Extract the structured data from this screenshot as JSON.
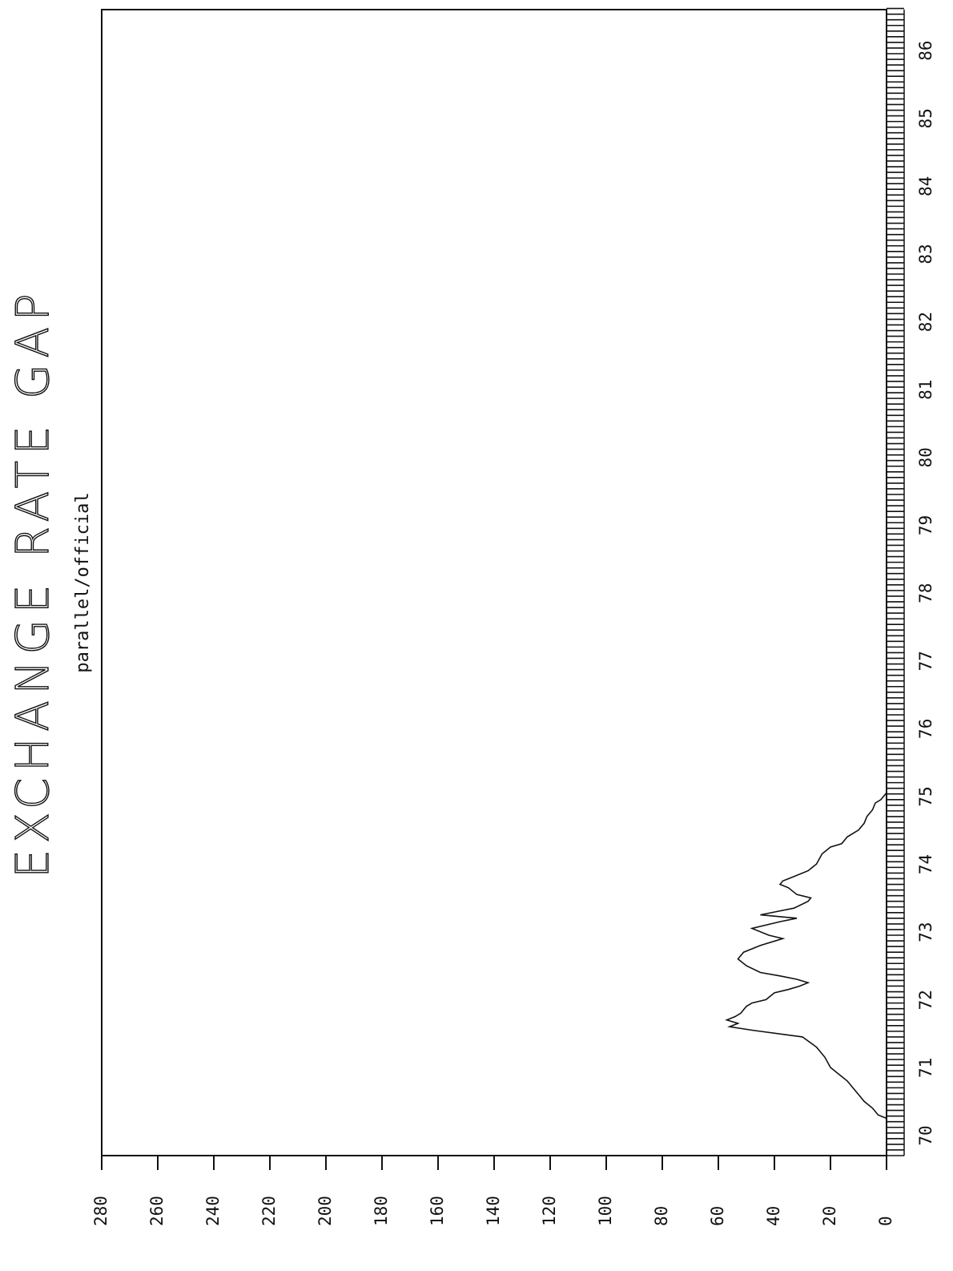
{
  "chart_data": {
    "type": "line",
    "title": "EXCHANGE RATE GAP",
    "subtitle": "parallel/official",
    "xlabel": "",
    "ylabel": "",
    "xlim": [
      70,
      86.9
    ],
    "ylim": [
      0,
      280
    ],
    "x_ticks": [
      {
        "value": 70,
        "label": "70"
      },
      {
        "value": 71,
        "label": "71"
      },
      {
        "value": 72,
        "label": "72"
      },
      {
        "value": 73,
        "label": "73"
      },
      {
        "value": 74,
        "label": "74"
      },
      {
        "value": 75,
        "label": "75"
      },
      {
        "value": 76,
        "label": "76"
      },
      {
        "value": 77,
        "label": "77"
      },
      {
        "value": 78,
        "label": "78"
      },
      {
        "value": 79,
        "label": "79"
      },
      {
        "value": 80,
        "label": "80"
      },
      {
        "value": 81,
        "label": "81"
      },
      {
        "value": 82,
        "label": "82"
      },
      {
        "value": 83,
        "label": "83"
      },
      {
        "value": 84,
        "label": "84"
      },
      {
        "value": 85,
        "label": "85"
      },
      {
        "value": 86,
        "label": "86"
      }
    ],
    "y_ticks": [
      {
        "value": 0,
        "label": "0"
      },
      {
        "value": 20,
        "label": "20"
      },
      {
        "value": 40,
        "label": "40"
      },
      {
        "value": 60,
        "label": "60"
      },
      {
        "value": 80,
        "label": "80"
      },
      {
        "value": 100,
        "label": "100"
      },
      {
        "value": 120,
        "label": "120"
      },
      {
        "value": 140,
        "label": "140"
      },
      {
        "value": 160,
        "label": "160"
      },
      {
        "value": 180,
        "label": "180"
      },
      {
        "value": 200,
        "label": "200"
      },
      {
        "value": 220,
        "label": "220"
      },
      {
        "value": 240,
        "label": "240"
      },
      {
        "value": 260,
        "label": "260"
      },
      {
        "value": 280,
        "label": "280"
      }
    ],
    "grid": false,
    "legend": "none",
    "series": [
      {
        "name": "",
        "color": "#111111",
        "points": [
          [
            70.55,
            0
          ],
          [
            70.6,
            3
          ],
          [
            70.7,
            5
          ],
          [
            70.8,
            8
          ],
          [
            70.9,
            10
          ],
          [
            71.0,
            12
          ],
          [
            71.1,
            14
          ],
          [
            71.2,
            17
          ],
          [
            71.3,
            20
          ],
          [
            71.45,
            22
          ],
          [
            71.6,
            25
          ],
          [
            71.75,
            30
          ],
          [
            71.85,
            48
          ],
          [
            71.9,
            56
          ],
          [
            71.95,
            53
          ],
          [
            72.0,
            57
          ],
          [
            72.05,
            54
          ],
          [
            72.1,
            52
          ],
          [
            72.2,
            50
          ],
          [
            72.25,
            48
          ],
          [
            72.3,
            43
          ],
          [
            72.4,
            40
          ],
          [
            72.45,
            35
          ],
          [
            72.5,
            31
          ],
          [
            72.55,
            28
          ],
          [
            72.6,
            32
          ],
          [
            72.65,
            38
          ],
          [
            72.7,
            45
          ],
          [
            72.8,
            50
          ],
          [
            72.9,
            53
          ],
          [
            73.0,
            51
          ],
          [
            73.1,
            45
          ],
          [
            73.2,
            37
          ],
          [
            73.25,
            42
          ],
          [
            73.35,
            48
          ],
          [
            73.45,
            38
          ],
          [
            73.5,
            32
          ],
          [
            73.55,
            45
          ],
          [
            73.6,
            39
          ],
          [
            73.65,
            33
          ],
          [
            73.75,
            28
          ],
          [
            73.8,
            27
          ],
          [
            73.85,
            32
          ],
          [
            73.95,
            35
          ],
          [
            74.0,
            38
          ],
          [
            74.05,
            37
          ],
          [
            74.1,
            34
          ],
          [
            74.2,
            28
          ],
          [
            74.3,
            25
          ],
          [
            74.45,
            23
          ],
          [
            74.55,
            20
          ],
          [
            74.6,
            16
          ],
          [
            74.7,
            14
          ],
          [
            74.8,
            10
          ],
          [
            74.9,
            8
          ],
          [
            75.0,
            7
          ],
          [
            75.1,
            5
          ],
          [
            75.2,
            4
          ],
          [
            75.25,
            2
          ],
          [
            75.35,
            0
          ]
        ]
      }
    ],
    "annotations": []
  }
}
